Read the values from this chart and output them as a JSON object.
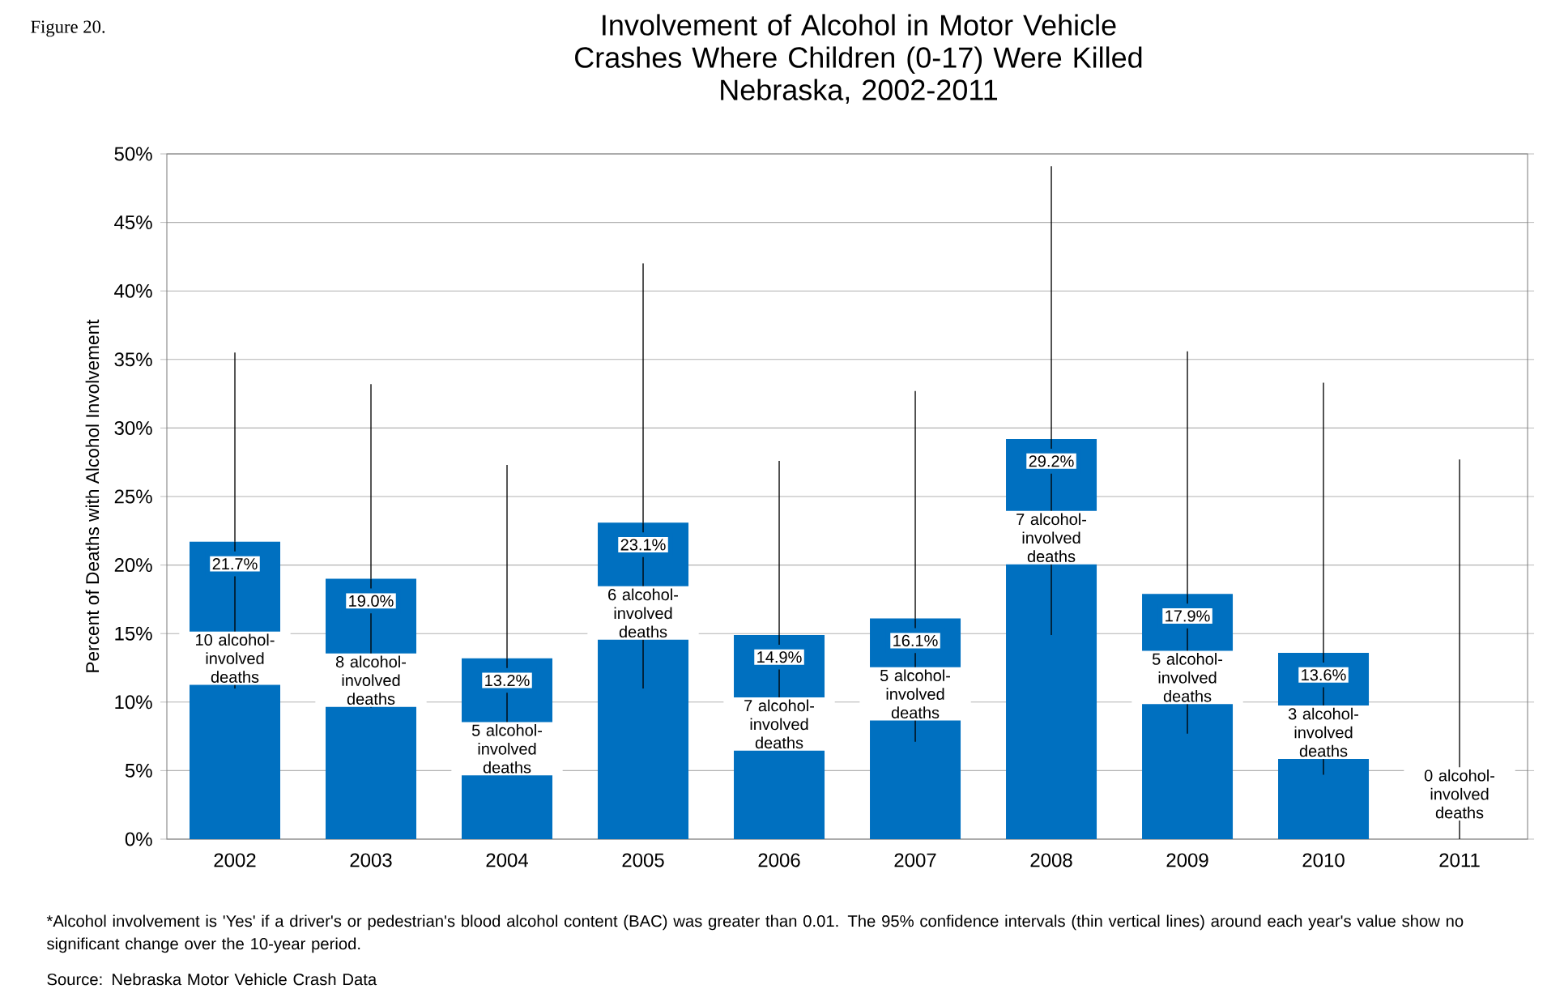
{
  "chart_data": {
    "type": "bar",
    "title": "Involvement of Alcohol in Motor Vehicle Crashes Where Children (0-17) Were Killed",
    "subtitle": "Nebraska, 2002-2011",
    "ylabel": "Percent of Deaths with Alcohol Involvement",
    "categories": [
      "2002",
      "2003",
      "2004",
      "2005",
      "2006",
      "2007",
      "2008",
      "2009",
      "2010",
      "2011"
    ],
    "values": [
      21.7,
      19.0,
      13.2,
      23.1,
      14.9,
      16.1,
      29.2,
      17.9,
      13.6,
      0
    ],
    "value_labels": [
      "21.7%",
      "19.0%",
      "13.2%",
      "23.1%",
      "14.9%",
      "16.1%",
      "29.2%",
      "17.9%",
      "13.6%",
      null
    ],
    "errors": [
      [
        11.0,
        35.5
      ],
      [
        9.6,
        33.2
      ],
      [
        5.0,
        27.3
      ],
      [
        11.0,
        42.0
      ],
      [
        7.0,
        27.6
      ],
      [
        7.1,
        32.7
      ],
      [
        14.9,
        49.1
      ],
      [
        7.7,
        35.6
      ],
      [
        4.7,
        33.3
      ],
      [
        0,
        27.7
      ]
    ],
    "color": "#0070c0",
    "grid": "y",
    "ylim": [
      0,
      50
    ],
    "yticks": [
      {
        "value": 0,
        "label": "0%"
      },
      {
        "value": 5,
        "label": "5%"
      },
      {
        "value": 10,
        "label": "10%"
      },
      {
        "value": 15,
        "label": "15%"
      },
      {
        "value": 20,
        "label": "20%"
      },
      {
        "value": 25,
        "label": "25%"
      },
      {
        "value": 30,
        "label": "30%"
      },
      {
        "value": 35,
        "label": "35%"
      },
      {
        "value": 40,
        "label": "40%"
      },
      {
        "value": 45,
        "label": "45%"
      },
      {
        "value": 50,
        "label": "50%"
      }
    ],
    "annotations": [
      "Figure 20.",
      "*Alcohol involvement is 'Yes' if a driver's or pedestrian's blood alcohol content (BAC) was greater than 0.01. The 95% confidence intervals (thin vertical lines) around each year's value show no significant change over the 10-year period.",
      "Source: Nebraska Motor Vehicle Crash Data",
      {
        "text": "10 alcohol-involved deaths",
        "x": "2002",
        "y": 13.2
      },
      {
        "text": "8 alcohol-involved deaths",
        "x": "2003",
        "y": 11.6
      },
      {
        "text": "5 alcohol-involved deaths",
        "x": "2004",
        "y": 6.6
      },
      {
        "text": "6 alcohol-involved deaths",
        "x": "2005",
        "y": 16.5
      },
      {
        "text": "7 alcohol-involved deaths",
        "x": "2006",
        "y": 8.4
      },
      {
        "text": "5 alcohol-involved deaths",
        "x": "2007",
        "y": 10.6
      },
      {
        "text": "7 alcohol-involved deaths",
        "x": "2008",
        "y": 22.0
      },
      {
        "text": "5 alcohol-involved deaths",
        "x": "2009",
        "y": 11.8
      },
      {
        "text": "3 alcohol-involved deaths",
        "x": "2010",
        "y": 7.8
      },
      {
        "text": "0 alcohol-involved deaths",
        "x": "2011",
        "y": 3.3
      }
    ]
  }
}
